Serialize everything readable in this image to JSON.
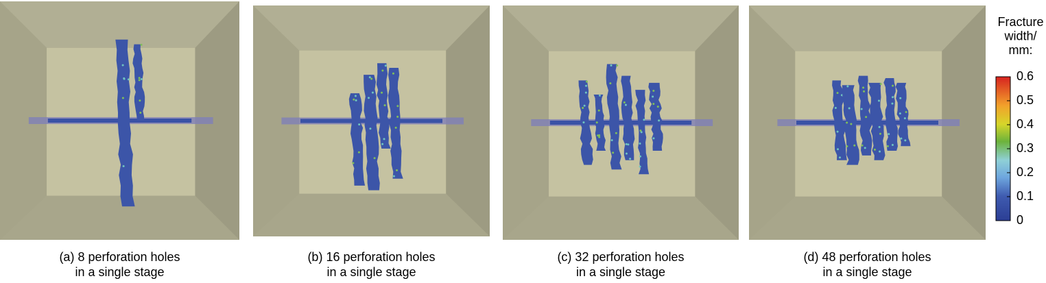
{
  "panels": [
    {
      "caption": [
        "(a) 8 perforation holes",
        "in a single stage"
      ]
    },
    {
      "caption": [
        "(b) 16 perforation holes",
        "in a single stage"
      ]
    },
    {
      "caption": [
        "(c) 32 perforation holes",
        "in a single stage"
      ]
    },
    {
      "caption": [
        "(d) 48 perforation holes",
        "in a single stage"
      ]
    }
  ],
  "colorbar": {
    "title": [
      "Fracture",
      "width/",
      "mm:"
    ],
    "lim": [
      0,
      0.6
    ],
    "ticks": [
      0,
      0.1,
      0.2,
      0.3,
      0.4,
      0.5,
      0.6
    ]
  }
}
